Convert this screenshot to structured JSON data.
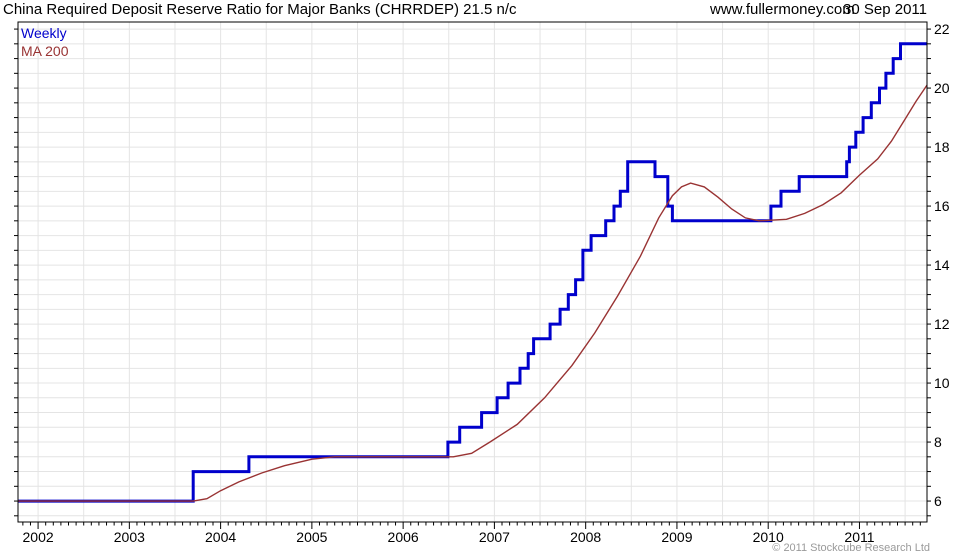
{
  "header": {
    "title": "China Required Deposit Reserve Ratio for Major Banks (CHRRDEP) 21.5 n/c",
    "website": "www.fullermoney.com",
    "date": "30 Sep 2011"
  },
  "legend": {
    "weekly_label": "Weekly",
    "ma_label": "MA 200"
  },
  "footer": {
    "copyright": "© 2011 Stockcube Research Ltd"
  },
  "colors": {
    "weekly": "#0000cc",
    "ma200": "#993333",
    "grid": "#e4e4e4",
    "axis": "#000000",
    "label": "#000000",
    "muted": "#9a9a9a",
    "background": "#ffffff"
  },
  "chart_data": {
    "type": "line",
    "title": "China Required Deposit Reserve Ratio for Major Banks (CHRRDEP)",
    "last_value": 21.5,
    "change_note": "n/c",
    "x_domain": [
      2001.78,
      2011.74
    ],
    "y_domain": [
      5.29,
      22.24
    ],
    "y_axis_side": "right",
    "y_tick_labels": [
      22,
      20,
      18,
      16,
      14,
      12,
      10,
      8,
      6
    ],
    "x_tick_labels": [
      2002,
      2003,
      2004,
      2005,
      2006,
      2007,
      2008,
      2009,
      2010,
      2011
    ],
    "grid": {
      "on": true,
      "x_step_years": 0.5,
      "y_step": 0.5
    },
    "minor_x_tick_months": true,
    "y_tick_step": 0.5,
    "legend_position": "top-left",
    "series": [
      {
        "name": "Weekly",
        "style": "step-after",
        "color": "#0000cc",
        "width": 3,
        "points": [
          [
            2001.78,
            6.0
          ],
          [
            2003.7,
            7.0
          ],
          [
            2004.31,
            7.5
          ],
          [
            2006.49,
            8.0
          ],
          [
            2006.62,
            8.5
          ],
          [
            2006.86,
            9.0
          ],
          [
            2007.03,
            9.5
          ],
          [
            2007.15,
            10.0
          ],
          [
            2007.28,
            10.5
          ],
          [
            2007.37,
            11.0
          ],
          [
            2007.43,
            11.5
          ],
          [
            2007.61,
            12.0
          ],
          [
            2007.72,
            12.5
          ],
          [
            2007.81,
            13.0
          ],
          [
            2007.89,
            13.5
          ],
          [
            2007.97,
            14.5
          ],
          [
            2008.06,
            15.0
          ],
          [
            2008.22,
            15.5
          ],
          [
            2008.31,
            16.0
          ],
          [
            2008.38,
            16.5
          ],
          [
            2008.46,
            17.5
          ],
          [
            2008.76,
            17.0
          ],
          [
            2008.9,
            16.0
          ],
          [
            2008.95,
            15.5
          ],
          [
            2010.03,
            16.0
          ],
          [
            2010.14,
            16.5
          ],
          [
            2010.34,
            17.0
          ],
          [
            2010.86,
            17.5
          ],
          [
            2010.89,
            18.0
          ],
          [
            2010.96,
            18.5
          ],
          [
            2011.04,
            19.0
          ],
          [
            2011.13,
            19.5
          ],
          [
            2011.22,
            20.0
          ],
          [
            2011.29,
            20.5
          ],
          [
            2011.37,
            21.0
          ],
          [
            2011.45,
            21.5
          ],
          [
            2011.74,
            21.5
          ]
        ]
      },
      {
        "name": "MA 200",
        "style": "linear",
        "color": "#993333",
        "width": 1.4,
        "points": [
          [
            2001.78,
            6.0
          ],
          [
            2003.7,
            6.0
          ],
          [
            2003.85,
            6.08
          ],
          [
            2004.0,
            6.35
          ],
          [
            2004.2,
            6.65
          ],
          [
            2004.45,
            6.95
          ],
          [
            2004.7,
            7.2
          ],
          [
            2005.0,
            7.42
          ],
          [
            2005.25,
            7.5
          ],
          [
            2006.55,
            7.5
          ],
          [
            2006.75,
            7.62
          ],
          [
            2006.95,
            8.0
          ],
          [
            2007.25,
            8.6
          ],
          [
            2007.55,
            9.5
          ],
          [
            2007.85,
            10.6
          ],
          [
            2008.1,
            11.7
          ],
          [
            2008.35,
            12.95
          ],
          [
            2008.6,
            14.3
          ],
          [
            2008.8,
            15.6
          ],
          [
            2008.95,
            16.35
          ],
          [
            2009.05,
            16.65
          ],
          [
            2009.15,
            16.78
          ],
          [
            2009.3,
            16.65
          ],
          [
            2009.45,
            16.3
          ],
          [
            2009.6,
            15.9
          ],
          [
            2009.75,
            15.6
          ],
          [
            2009.9,
            15.5
          ],
          [
            2010.2,
            15.55
          ],
          [
            2010.4,
            15.75
          ],
          [
            2010.6,
            16.05
          ],
          [
            2010.8,
            16.45
          ],
          [
            2011.0,
            17.05
          ],
          [
            2011.2,
            17.6
          ],
          [
            2011.35,
            18.2
          ],
          [
            2011.5,
            18.95
          ],
          [
            2011.62,
            19.55
          ],
          [
            2011.74,
            20.1
          ]
        ]
      }
    ]
  }
}
